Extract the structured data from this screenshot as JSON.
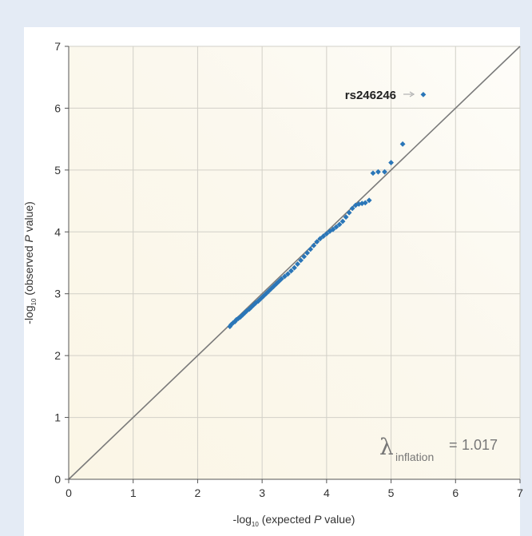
{
  "chart_data": {
    "type": "scatter",
    "title": "",
    "xlabel_prefix": "-log",
    "xlabel_sub": "10",
    "xlabel_pre": " (expected ",
    "xlabel_ital": "P",
    "xlabel_post": " value)",
    "ylabel_prefix": "-log",
    "ylabel_sub": "10",
    "ylabel_pre": " (observed ",
    "ylabel_ital": "P",
    "ylabel_post": " value)",
    "xlim": [
      0,
      7
    ],
    "ylim": [
      0,
      7
    ],
    "xticks": [
      "0",
      "1",
      "2",
      "3",
      "4",
      "5",
      "6",
      "7"
    ],
    "yticks": [
      "0",
      "1",
      "2",
      "3",
      "4",
      "5",
      "6",
      "7"
    ],
    "grid": true,
    "reference_line": {
      "from": [
        0,
        0
      ],
      "to": [
        7,
        7
      ]
    },
    "series": [
      {
        "points": [
          [
            2.5,
            2.47
          ],
          [
            2.52,
            2.5
          ],
          [
            2.55,
            2.53
          ],
          [
            2.58,
            2.55
          ],
          [
            2.6,
            2.58
          ],
          [
            2.63,
            2.6
          ],
          [
            2.66,
            2.62
          ],
          [
            2.7,
            2.66
          ],
          [
            2.73,
            2.69
          ],
          [
            2.76,
            2.72
          ],
          [
            2.8,
            2.75
          ],
          [
            2.83,
            2.78
          ],
          [
            2.87,
            2.82
          ],
          [
            2.9,
            2.85
          ],
          [
            2.94,
            2.88
          ],
          [
            2.98,
            2.92
          ],
          [
            3.02,
            2.96
          ],
          [
            3.06,
            3.0
          ],
          [
            3.1,
            3.04
          ],
          [
            3.14,
            3.08
          ],
          [
            3.18,
            3.12
          ],
          [
            3.22,
            3.16
          ],
          [
            3.26,
            3.2
          ],
          [
            3.3,
            3.24
          ],
          [
            3.35,
            3.28
          ],
          [
            3.4,
            3.32
          ],
          [
            3.45,
            3.37
          ],
          [
            3.5,
            3.42
          ],
          [
            3.55,
            3.48
          ],
          [
            3.6,
            3.54
          ],
          [
            3.65,
            3.6
          ],
          [
            3.7,
            3.66
          ],
          [
            3.75,
            3.72
          ],
          [
            3.8,
            3.78
          ],
          [
            3.85,
            3.84
          ],
          [
            3.9,
            3.89
          ],
          [
            3.95,
            3.93
          ],
          [
            4.0,
            3.97
          ],
          [
            4.05,
            4.01
          ],
          [
            4.1,
            4.04
          ],
          [
            4.15,
            4.08
          ],
          [
            4.2,
            4.12
          ],
          [
            4.25,
            4.17
          ],
          [
            4.3,
            4.24
          ],
          [
            4.35,
            4.31
          ],
          [
            4.4,
            4.38
          ],
          [
            4.45,
            4.43
          ],
          [
            4.5,
            4.45
          ],
          [
            4.55,
            4.46
          ],
          [
            4.6,
            4.47
          ],
          [
            4.66,
            4.51
          ],
          [
            4.72,
            4.95
          ],
          [
            4.8,
            4.97
          ],
          [
            4.9,
            4.97
          ],
          [
            5.0,
            5.12
          ],
          [
            5.18,
            5.42
          ],
          [
            5.5,
            6.22
          ]
        ]
      }
    ],
    "annotations": [
      {
        "text": "rs246246",
        "point": [
          5.5,
          6.22
        ]
      }
    ],
    "lambda": {
      "symbol": "λ",
      "subscript": "inflation",
      "equals": "=",
      "value": "1.017"
    },
    "colors": {
      "points": "#2a76b8",
      "reference_line": "#7a7a7a",
      "grid": "#d2d0c8",
      "arrow": "#b0b0b0"
    }
  }
}
